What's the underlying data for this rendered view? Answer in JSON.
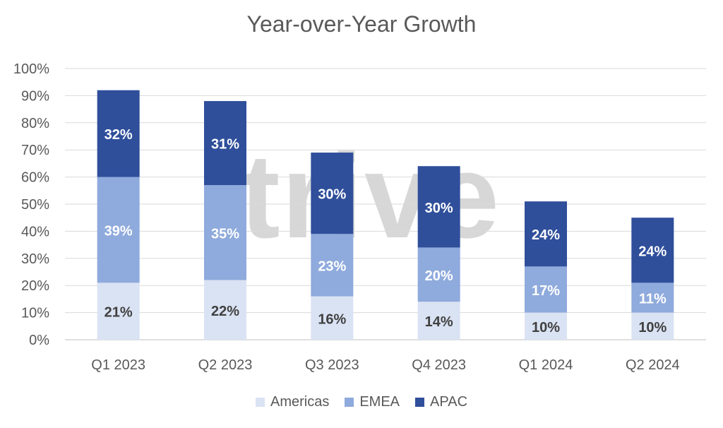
{
  "chart_data": {
    "type": "bar",
    "stacked": true,
    "title": "Year-over-Year Growth",
    "categories": [
      "Q1 2023",
      "Q2 2023",
      "Q3 2023",
      "Q4 2023",
      "Q1 2024",
      "Q2 2024"
    ],
    "series": [
      {
        "name": "Americas",
        "values": [
          21,
          22,
          16,
          14,
          10,
          10
        ],
        "labels": [
          "21%",
          "22%",
          "16%",
          "14%",
          "10%",
          "10%"
        ],
        "color": "#dae3f3",
        "label_color": "#404040"
      },
      {
        "name": "EMEA",
        "values": [
          39,
          35,
          23,
          20,
          17,
          11
        ],
        "labels": [
          "39%",
          "35%",
          "23%",
          "20%",
          "17%",
          "11%"
        ],
        "color": "#8faadc",
        "label_color": "#ffffff"
      },
      {
        "name": "APAC",
        "values": [
          32,
          31,
          30,
          30,
          24,
          24
        ],
        "labels": [
          "32%",
          "31%",
          "30%",
          "30%",
          "24%",
          "24%"
        ],
        "color": "#2f4f9b",
        "label_color": "#ffffff"
      }
    ],
    "ylim": [
      0,
      100
    ],
    "yticks": [
      "0%",
      "10%",
      "20%",
      "30%",
      "40%",
      "50%",
      "60%",
      "70%",
      "80%",
      "90%",
      "100%"
    ],
    "grid": true,
    "legend_position": "bottom"
  },
  "watermark": "trive"
}
